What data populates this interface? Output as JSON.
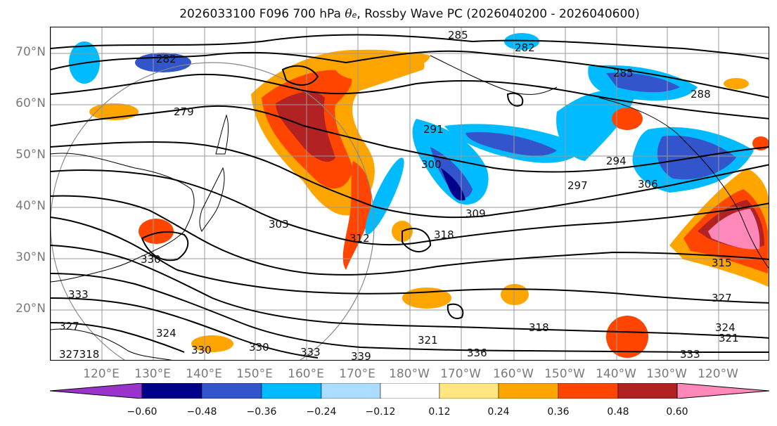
{
  "title": {
    "prefix": "2026033100 F096 700 hPa ",
    "theta": "θ",
    "theta_sub": "e",
    "suffix": ", Rossby Wave PC (2026040200 - 2026040600)"
  },
  "lat_labels": [
    "70°N",
    "60°N",
    "50°N",
    "40°N",
    "30°N",
    "20°N"
  ],
  "lon_labels": [
    "120°E",
    "130°E",
    "140°E",
    "150°E",
    "160°E",
    "170°E",
    "180°W",
    "170°W",
    "160°W",
    "150°W",
    "140°W",
    "130°W",
    "120°W"
  ],
  "colorbar": {
    "colors": [
      "#9933cc",
      "#000088",
      "#3355cc",
      "#00bbff",
      "#aaddff",
      "#ffffff",
      "#ffe680",
      "#ffa500",
      "#ff4500",
      "#b22222",
      "#ff88bb"
    ],
    "ticks": [
      "−0.60",
      "−0.48",
      "−0.36",
      "−0.24",
      "−0.12",
      "0.12",
      "0.24",
      "0.36",
      "0.48",
      "0.60"
    ]
  },
  "contour_labels": [
    {
      "text": "285"
    },
    {
      "text": "282"
    },
    {
      "text": "282"
    },
    {
      "text": "285"
    },
    {
      "text": "288"
    },
    {
      "text": "279"
    },
    {
      "text": "291"
    },
    {
      "text": "300"
    },
    {
      "text": "294"
    },
    {
      "text": "297"
    },
    {
      "text": "306"
    },
    {
      "text": "303"
    },
    {
      "text": "309"
    },
    {
      "text": "318"
    },
    {
      "text": "312"
    },
    {
      "text": "330"
    },
    {
      "text": "315"
    },
    {
      "text": "327"
    },
    {
      "text": "333"
    },
    {
      "text": "327"
    },
    {
      "text": "324"
    },
    {
      "text": "330"
    },
    {
      "text": "330"
    },
    {
      "text": "333"
    },
    {
      "text": "339"
    },
    {
      "text": "336"
    },
    {
      "text": "321"
    },
    {
      "text": "318"
    },
    {
      "text": "324"
    },
    {
      "text": "321"
    },
    {
      "text": "333"
    },
    {
      "text": "327318"
    }
  ],
  "colors": {
    "contour": "#000000",
    "grid": "#999999",
    "axis_text": "#7a7a7a"
  }
}
